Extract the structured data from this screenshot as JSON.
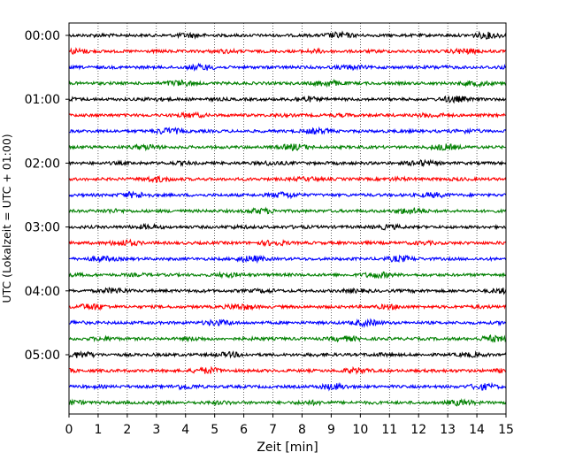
{
  "chart_data": {
    "type": "line",
    "title": "",
    "xlabel": "Zeit  [min]",
    "ylabel": "UTC (Lokalzeit = UTC + 01:00)",
    "xlim": [
      0,
      15
    ],
    "x_ticks": [
      "0",
      "1",
      "2",
      "3",
      "4",
      "5",
      "6",
      "7",
      "8",
      "9",
      "10",
      "11",
      "12",
      "13",
      "14",
      "15"
    ],
    "y_ticks": [
      "00:00",
      "01:00",
      "02:00",
      "03:00",
      "04:00",
      "05:00"
    ],
    "y_tick_rows": [
      0,
      4,
      8,
      12,
      16,
      20
    ],
    "grid": "vertical dotted at each minute",
    "row_interval_minutes": 15,
    "row_count": 24,
    "row_colors": [
      "#000000",
      "#ff0000",
      "#0000ff",
      "#008000"
    ],
    "series": [
      {
        "start": "00:00"
      },
      {
        "start": "00:15"
      },
      {
        "start": "00:30"
      },
      {
        "start": "00:45"
      },
      {
        "start": "01:00"
      },
      {
        "start": "01:15"
      },
      {
        "start": "01:30"
      },
      {
        "start": "01:45"
      },
      {
        "start": "02:00"
      },
      {
        "start": "02:15"
      },
      {
        "start": "02:30"
      },
      {
        "start": "02:45"
      },
      {
        "start": "03:00"
      },
      {
        "start": "03:15"
      },
      {
        "start": "03:30"
      },
      {
        "start": "03:45"
      },
      {
        "start": "04:00"
      },
      {
        "start": "04:15"
      },
      {
        "start": "04:30"
      },
      {
        "start": "04:45"
      },
      {
        "start": "05:00"
      },
      {
        "start": "05:15"
      },
      {
        "start": "05:30"
      },
      {
        "start": "05:45"
      }
    ]
  }
}
